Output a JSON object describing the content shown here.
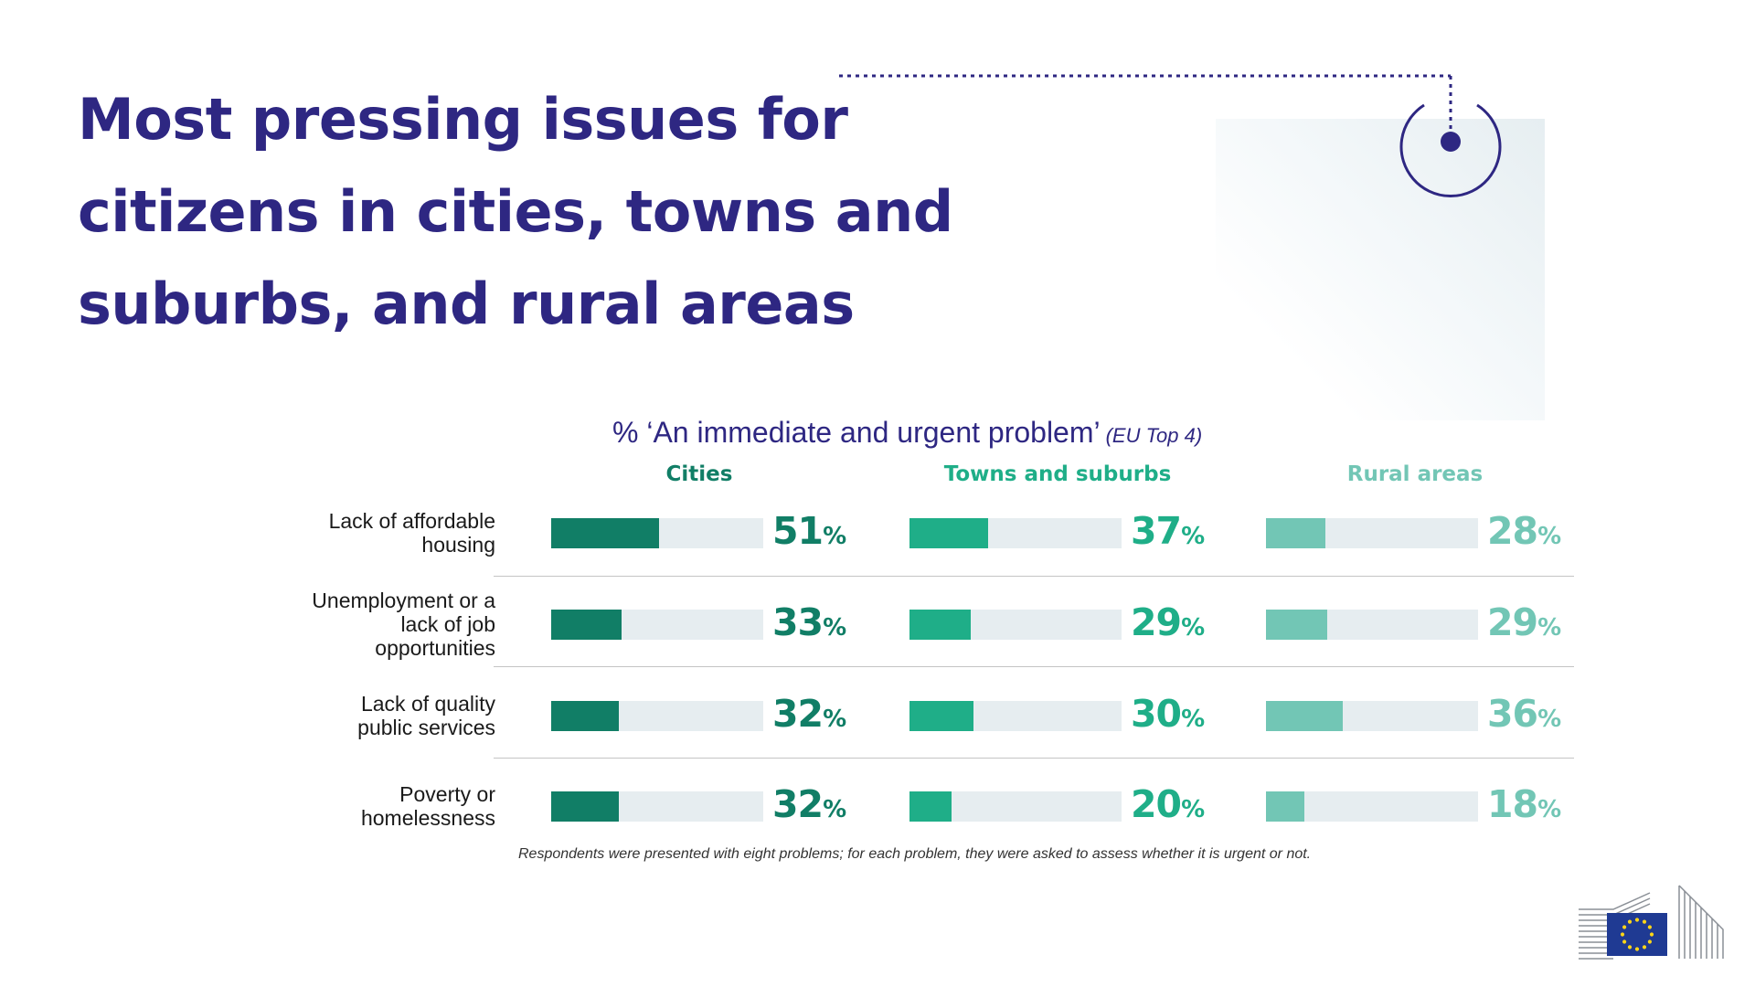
{
  "title_lines": [
    "Most pressing issues for",
    "citizens in cities, towns and",
    "suburbs, and rural areas"
  ],
  "colors": {
    "title": "#2e2782",
    "cities": "#117e66",
    "towns": "#1fae88",
    "rural": "#72c6b5",
    "track": "#e6edf0"
  },
  "chart_data": {
    "type": "bar",
    "title": "% ‘An immediate and urgent problem’",
    "subtitle": "(EU Top 4)",
    "categories": [
      [
        "Lack of affordable",
        "housing"
      ],
      [
        "Unemployment or a",
        "lack of job",
        "opportunities"
      ],
      [
        "Lack of quality",
        "public services"
      ],
      [
        "Poverty or",
        "homelessness"
      ]
    ],
    "series": [
      {
        "name": "Cities",
        "values": [
          51,
          33,
          32,
          32
        ]
      },
      {
        "name": "Towns and suburbs",
        "values": [
          37,
          29,
          30,
          20
        ]
      },
      {
        "name": "Rural areas",
        "values": [
          28,
          29,
          36,
          18
        ]
      }
    ],
    "unit": "%",
    "xlim": [
      0,
      100
    ]
  },
  "footnote": "Respondents were presented with eight problems; for each problem, they were asked to assess whether it is urgent or not.",
  "logo_icon": "european-commission-logo-icon"
}
